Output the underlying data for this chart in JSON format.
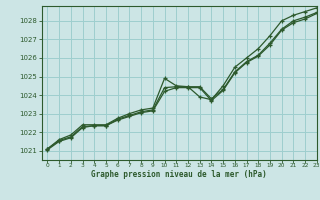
{
  "title": "Graphe pression niveau de la mer (hPa)",
  "bg_color": "#cce5e5",
  "grid_color": "#9ecece",
  "line_color": "#2d5a2d",
  "xlim": [
    -0.5,
    23
  ],
  "ylim": [
    1020.5,
    1028.8
  ],
  "yticks": [
    1021,
    1022,
    1023,
    1024,
    1025,
    1026,
    1027,
    1028
  ],
  "xticks": [
    0,
    1,
    2,
    3,
    4,
    5,
    6,
    7,
    8,
    9,
    10,
    11,
    12,
    13,
    14,
    15,
    16,
    17,
    18,
    19,
    20,
    21,
    22,
    23
  ],
  "line1_x": [
    0,
    1,
    2,
    3,
    4,
    5,
    6,
    7,
    8,
    9,
    10,
    11,
    12,
    13,
    14,
    15,
    16,
    17,
    18,
    19,
    20,
    21,
    22,
    23
  ],
  "line1_y": [
    1021.1,
    1021.6,
    1021.85,
    1022.4,
    1022.4,
    1022.4,
    1022.75,
    1023.0,
    1023.2,
    1023.3,
    1024.9,
    1024.5,
    1024.45,
    1023.9,
    1023.75,
    1024.5,
    1025.5,
    1026.0,
    1026.5,
    1027.2,
    1028.0,
    1028.3,
    1028.5,
    1028.7
  ],
  "line2_x": [
    0,
    1,
    2,
    3,
    4,
    5,
    6,
    7,
    8,
    9,
    10,
    11,
    12,
    13,
    14,
    15,
    16,
    17,
    18,
    19,
    20,
    21,
    22,
    23
  ],
  "line2_y": [
    1021.1,
    1021.55,
    1021.75,
    1022.3,
    1022.35,
    1022.35,
    1022.7,
    1022.9,
    1023.1,
    1023.2,
    1024.4,
    1024.45,
    1024.45,
    1024.45,
    1023.8,
    1024.3,
    1025.25,
    1025.8,
    1026.15,
    1026.8,
    1027.55,
    1028.0,
    1028.2,
    1028.45
  ],
  "line3_x": [
    0,
    1,
    2,
    3,
    4,
    5,
    6,
    7,
    8,
    9,
    10,
    11,
    12,
    13,
    14,
    15,
    16,
    17,
    18,
    19,
    20,
    21,
    22,
    23
  ],
  "line3_y": [
    1021.05,
    1021.5,
    1021.7,
    1022.25,
    1022.35,
    1022.35,
    1022.65,
    1022.85,
    1023.05,
    1023.15,
    1024.2,
    1024.4,
    1024.4,
    1024.4,
    1023.7,
    1024.25,
    1025.2,
    1025.75,
    1026.1,
    1026.7,
    1027.5,
    1027.9,
    1028.1,
    1028.4
  ]
}
